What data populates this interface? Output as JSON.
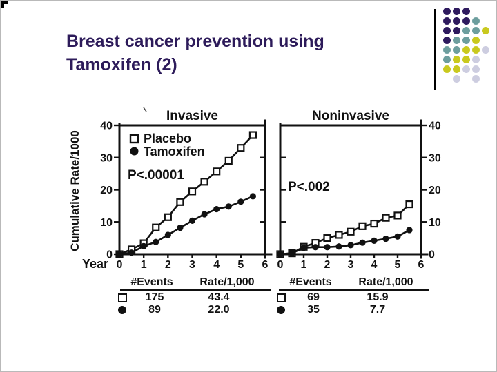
{
  "slide": {
    "title_lines": [
      "Breast cancer prevention using",
      "Tamoxifen (2)"
    ]
  },
  "theme": {
    "title_color": "#2d1b5a",
    "ink_color": "#111111",
    "dot_colors": {
      "purple": "#2e1a5e",
      "teal": "#6d9e9e",
      "yellow": "#c9c91e",
      "lavender": "#cdcde0"
    }
  },
  "decoration": {
    "dot_grid": [
      [
        "purple",
        "purple",
        "purple",
        "",
        ""
      ],
      [
        "purple",
        "purple",
        "purple",
        "teal",
        ""
      ],
      [
        "purple",
        "purple",
        "teal",
        "teal",
        "yellow"
      ],
      [
        "purple",
        "teal",
        "teal",
        "yellow",
        ""
      ],
      [
        "teal",
        "teal",
        "yellow",
        "yellow",
        "lavender"
      ],
      [
        "teal",
        "yellow",
        "yellow",
        "lavender",
        ""
      ],
      [
        "yellow",
        "yellow",
        "lavender",
        "lavender",
        ""
      ],
      [
        "",
        "lavender",
        "",
        "lavender",
        ""
      ]
    ]
  },
  "figure": {
    "ylabel": "Cumulative Rate/1000",
    "xlabel": "Year"
  },
  "chart_data": [
    {
      "type": "line",
      "title": "Invasive",
      "p_value": "P<.00001",
      "xlabel": "Year",
      "ylabel": "Cumulative Rate/1000",
      "xlim": [
        0,
        6
      ],
      "ylim": [
        0,
        40
      ],
      "xticks": [
        0,
        1,
        2,
        3,
        4,
        5,
        6
      ],
      "yticks": [
        0,
        10,
        20,
        30,
        40
      ],
      "y_axis_side": "left",
      "legend": true,
      "legend_position": "upper-left-inside",
      "x": [
        0,
        0.5,
        1,
        1.5,
        2,
        2.5,
        3,
        3.5,
        4,
        4.5,
        5,
        5.5
      ],
      "series": [
        {
          "name": "Placebo",
          "marker": "open-square",
          "values": [
            0,
            1.5,
            3.4,
            8.3,
            11.5,
            16.2,
            19.5,
            22.5,
            25.7,
            29,
            33,
            37
          ]
        },
        {
          "name": "Tamoxifen",
          "marker": "filled-circle",
          "values": [
            0,
            0.5,
            2.5,
            3.8,
            6,
            8.2,
            10.4,
            12.4,
            14,
            14.8,
            16.3,
            18
          ]
        }
      ]
    },
    {
      "type": "line",
      "title": "Noninvasive",
      "p_value": "P<.002",
      "xlabel": "Year",
      "xlim": [
        0,
        6
      ],
      "ylim": [
        0,
        40
      ],
      "xticks": [
        0,
        1,
        2,
        3,
        4,
        5,
        6
      ],
      "yticks": [
        0,
        10,
        20,
        30,
        40
      ],
      "y_axis_side": "right",
      "legend": false,
      "x": [
        0,
        0.5,
        1,
        1.5,
        2,
        2.5,
        3,
        3.5,
        4,
        4.5,
        5,
        5.5
      ],
      "series": [
        {
          "name": "Placebo",
          "marker": "open-square",
          "values": [
            0,
            0.3,
            2.3,
            3.5,
            5,
            6,
            7,
            8.7,
            9.5,
            11.3,
            12,
            15.5
          ]
        },
        {
          "name": "Tamoxifen",
          "marker": "filled-circle",
          "values": [
            0,
            0.3,
            2,
            2.2,
            2.2,
            2.4,
            2.8,
            3.6,
            4.2,
            4.8,
            5.5,
            7.5
          ]
        }
      ]
    }
  ],
  "tables": [
    {
      "headers": [
        "#Events",
        "Rate/1,000"
      ],
      "rows": [
        {
          "marker": "open-square",
          "events": "175",
          "rate": "43.4"
        },
        {
          "marker": "filled-circle",
          "events": "89",
          "rate": "22.0"
        }
      ]
    },
    {
      "headers": [
        "#Events",
        "Rate/1,000"
      ],
      "rows": [
        {
          "marker": "open-square",
          "events": "69",
          "rate": "15.9"
        },
        {
          "marker": "filled-circle",
          "events": "35",
          "rate": "7.7"
        }
      ]
    }
  ]
}
